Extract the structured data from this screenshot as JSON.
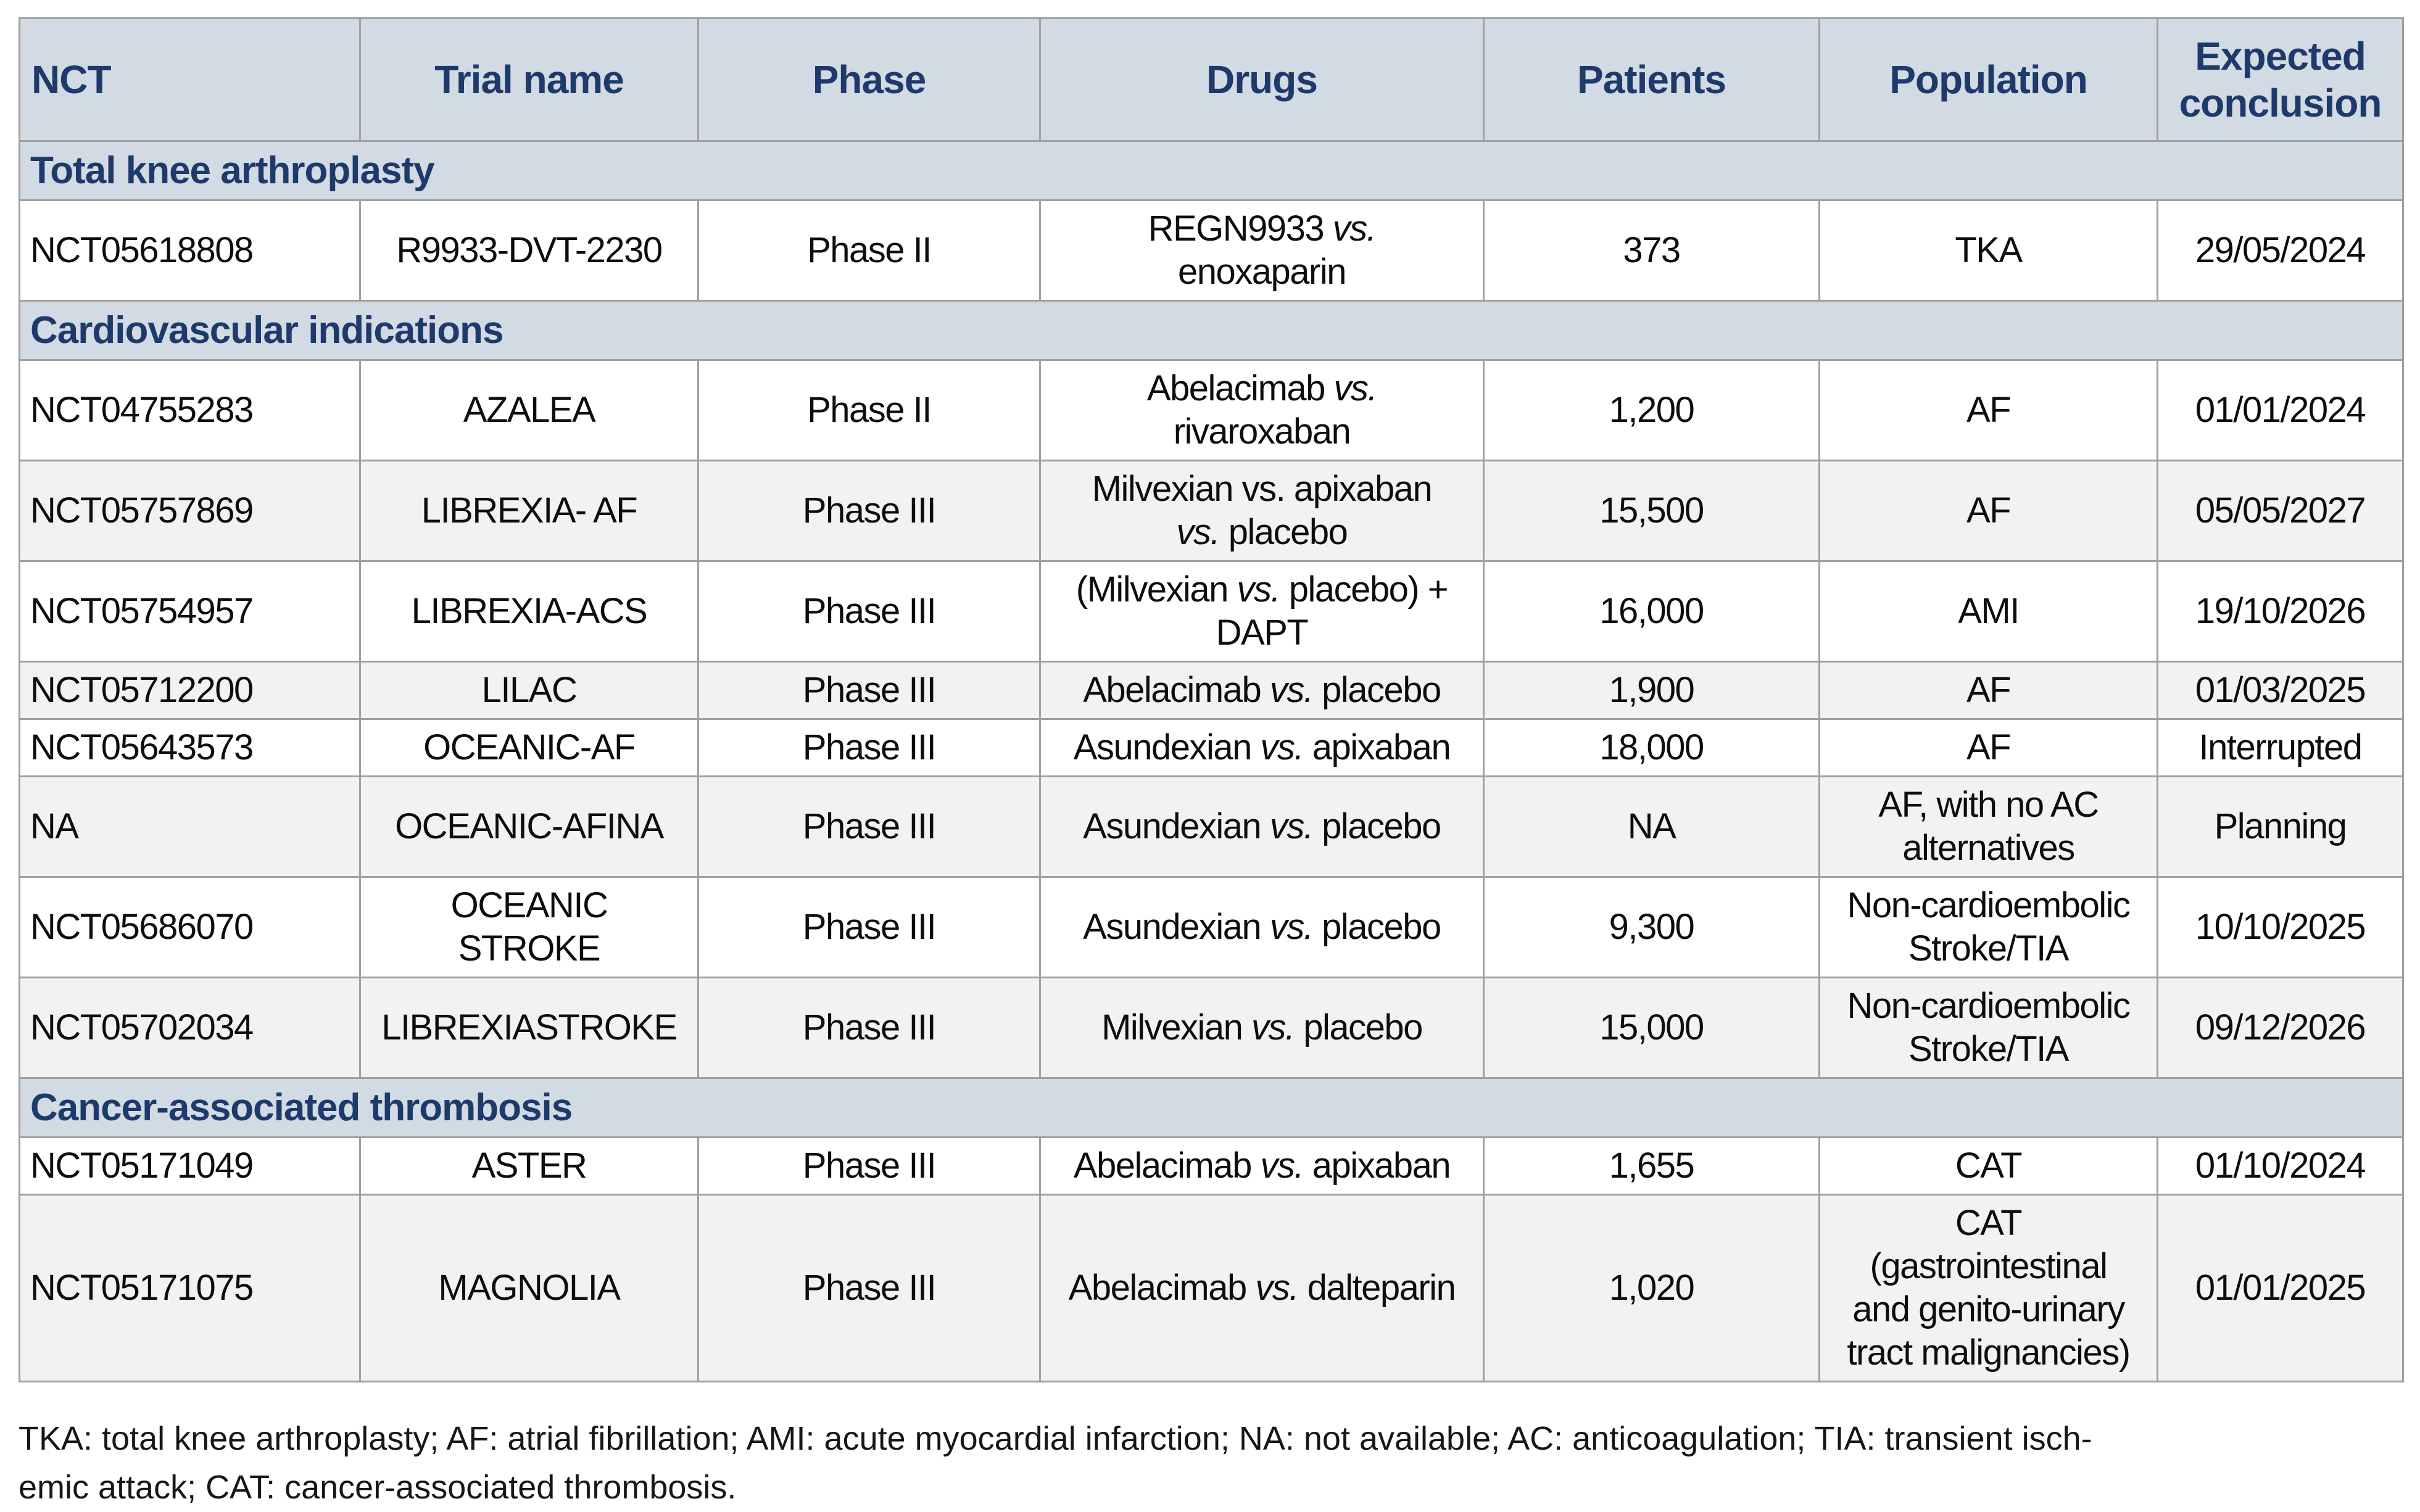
{
  "colors": {
    "header_bg": "#d2dae4",
    "section_bg": "#d2dae4",
    "header_text": "#1e3a6b",
    "row_alt_bg": "#f2f2f2",
    "border": "#a0a0a0"
  },
  "table": {
    "columns": [
      {
        "key": "nct",
        "label": "NCT"
      },
      {
        "key": "trial-name",
        "label": "Trial name"
      },
      {
        "key": "phase",
        "label": "Phase"
      },
      {
        "key": "drugs",
        "label": "Drugs"
      },
      {
        "key": "patients",
        "label": "Patients"
      },
      {
        "key": "population",
        "label": "Population"
      },
      {
        "key": "expected-conclusion",
        "label": "Expected conclusion"
      }
    ],
    "sections": [
      {
        "title": "Total knee arthroplasty",
        "rows": [
          {
            "nct": "NCT05618808",
            "trial": [
              "R9933-DVT-2230"
            ],
            "phase": "Phase II",
            "drugs": [
              [
                {
                  "t": "REGN9933 "
                },
                {
                  "t": "vs.",
                  "i": true
                }
              ],
              [
                {
                  "t": "enoxaparin"
                }
              ]
            ],
            "patients": "373",
            "population": [
              "TKA"
            ],
            "conclusion": "29/05/2024",
            "shade": "white"
          }
        ]
      },
      {
        "title": "Cardiovascular indications",
        "rows": [
          {
            "nct": "NCT04755283",
            "trial": [
              "AZALEA"
            ],
            "phase": "Phase II",
            "drugs": [
              [
                {
                  "t": "Abelacimab "
                },
                {
                  "t": "vs.",
                  "i": true
                }
              ],
              [
                {
                  "t": "rivaroxaban"
                }
              ]
            ],
            "patients": "1,200",
            "population": [
              "AF"
            ],
            "conclusion": "01/01/2024",
            "shade": "white"
          },
          {
            "nct": "NCT05757869",
            "trial": [
              "LIBREXIA- AF"
            ],
            "phase": "Phase III",
            "drugs": [
              [
                {
                  "t": "Milvexian vs. apixaban"
                }
              ],
              [
                {
                  "t": "vs.",
                  "i": true
                },
                {
                  "t": " placebo"
                }
              ]
            ],
            "patients": "15,500",
            "population": [
              "AF"
            ],
            "conclusion": "05/05/2027",
            "shade": "gray"
          },
          {
            "nct": "NCT05754957",
            "trial": [
              "LIBREXIA-ACS"
            ],
            "phase": "Phase III",
            "drugs": [
              [
                {
                  "t": "(Milvexian "
                },
                {
                  "t": "vs.",
                  "i": true
                },
                {
                  "t": " placebo) +"
                }
              ],
              [
                {
                  "t": "DAPT"
                }
              ]
            ],
            "patients": "16,000",
            "population": [
              "AMI"
            ],
            "conclusion": "19/10/2026",
            "shade": "white"
          },
          {
            "nct": "NCT05712200",
            "trial": [
              "LILAC"
            ],
            "phase": "Phase III",
            "drugs": [
              [
                {
                  "t": "Abelacimab "
                },
                {
                  "t": "vs.",
                  "i": true
                },
                {
                  "t": " placebo"
                }
              ]
            ],
            "patients": "1,900",
            "population": [
              "AF"
            ],
            "conclusion": "01/03/2025",
            "shade": "gray"
          },
          {
            "nct": "NCT05643573",
            "trial": [
              "OCEANIC-AF"
            ],
            "phase": "Phase III",
            "drugs": [
              [
                {
                  "t": "Asundexian "
                },
                {
                  "t": "vs.",
                  "i": true
                },
                {
                  "t": " apixaban"
                }
              ]
            ],
            "patients": "18,000",
            "population": [
              "AF"
            ],
            "conclusion": "Interrupted",
            "shade": "white"
          },
          {
            "nct": "NA",
            "trial": [
              "OCEANIC-AFINA"
            ],
            "phase": "Phase III",
            "drugs": [
              [
                {
                  "t": "Asundexian "
                },
                {
                  "t": "vs.",
                  "i": true
                },
                {
                  "t": " placebo"
                }
              ]
            ],
            "patients": "NA",
            "population": [
              "AF, with no AC",
              "alternatives"
            ],
            "conclusion": "Planning",
            "shade": "gray"
          },
          {
            "nct": "NCT05686070",
            "trial": [
              "OCEANIC",
              "STROKE"
            ],
            "phase": "Phase III",
            "drugs": [
              [
                {
                  "t": "Asundexian "
                },
                {
                  "t": "vs.",
                  "i": true
                },
                {
                  "t": " placebo"
                }
              ]
            ],
            "patients": "9,300",
            "population": [
              "Non-cardioembolic",
              "Stroke/TIA"
            ],
            "conclusion": "10/10/2025",
            "shade": "white"
          },
          {
            "nct": "NCT05702034",
            "trial": [
              "LIBREXIASTROKE"
            ],
            "phase": "Phase III",
            "drugs": [
              [
                {
                  "t": "Milvexian "
                },
                {
                  "t": "vs.",
                  "i": true
                },
                {
                  "t": " placebo"
                }
              ]
            ],
            "patients": "15,000",
            "population": [
              "Non-cardioembolic",
              "Stroke/TIA"
            ],
            "conclusion": "09/12/2026",
            "shade": "gray"
          }
        ]
      },
      {
        "title": "Cancer-associated thrombosis",
        "rows": [
          {
            "nct": "NCT05171049",
            "trial": [
              "ASTER"
            ],
            "phase": "Phase III",
            "drugs": [
              [
                {
                  "t": "Abelacimab "
                },
                {
                  "t": "vs.",
                  "i": true
                },
                {
                  "t": " apixaban"
                }
              ]
            ],
            "patients": "1,655",
            "population": [
              "CAT"
            ],
            "conclusion": "01/10/2024",
            "shade": "white"
          },
          {
            "nct": "NCT05171075",
            "trial": [
              "MAGNOLIA"
            ],
            "phase": "Phase III",
            "drugs": [
              [
                {
                  "t": "Abelacimab "
                },
                {
                  "t": "vs.",
                  "i": true
                },
                {
                  "t": " dalteparin"
                }
              ]
            ],
            "patients": "1,020",
            "population": [
              "CAT",
              "(gastrointestinal",
              "and genito-urinary",
              "tract malignancies)"
            ],
            "conclusion": "01/01/2025",
            "shade": "gray"
          }
        ]
      }
    ]
  },
  "footer": {
    "lines": [
      "TKA: total knee arthroplasty; AF: atrial fibrillation; AMI: acute myocardial infarction; NA: not available; AC: anticoagulation; TIA: transient isch-",
      "emic attack; CAT: cancer-associated thrombosis."
    ]
  }
}
